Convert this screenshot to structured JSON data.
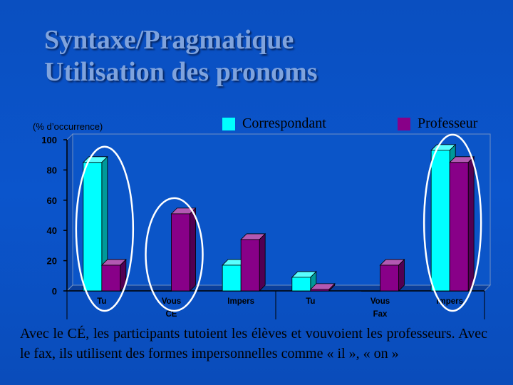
{
  "slide": {
    "title_line1": "Syntaxe/Pragmatique",
    "title_line2": "Utilisation des pronoms",
    "y_note": "(% d’occurrence)",
    "caption": "Avec le CÉ, les participants tutoient les élèves et vouvoient les professeurs. Avec le fax, ils utilisent des formes impersonnelles comme « il », « on »"
  },
  "chart_data": {
    "type": "bar",
    "ylabel": "(% d’occurrence)",
    "ylim": [
      0,
      100
    ],
    "yticks": [
      0,
      20,
      40,
      60,
      80,
      100
    ],
    "categories": [
      "Tu",
      "Vous",
      "Impers",
      "Tu",
      "Vous",
      "Impers"
    ],
    "groups": [
      {
        "label": "CE",
        "categories": [
          "Tu",
          "Vous",
          "Impers"
        ]
      },
      {
        "label": "Fax",
        "categories": [
          "Tu",
          "Vous",
          "Impers"
        ]
      }
    ],
    "series": [
      {
        "name": "Correspondant",
        "color": "#00ffff",
        "values": [
          85,
          0,
          17,
          9,
          0,
          93
        ]
      },
      {
        "name": "Professeur",
        "color": "#880088",
        "values": [
          17,
          51,
          34,
          1,
          17,
          85
        ]
      }
    ],
    "highlighted_categories": [
      0,
      1,
      5
    ],
    "legend_position": "top",
    "grid": false
  }
}
